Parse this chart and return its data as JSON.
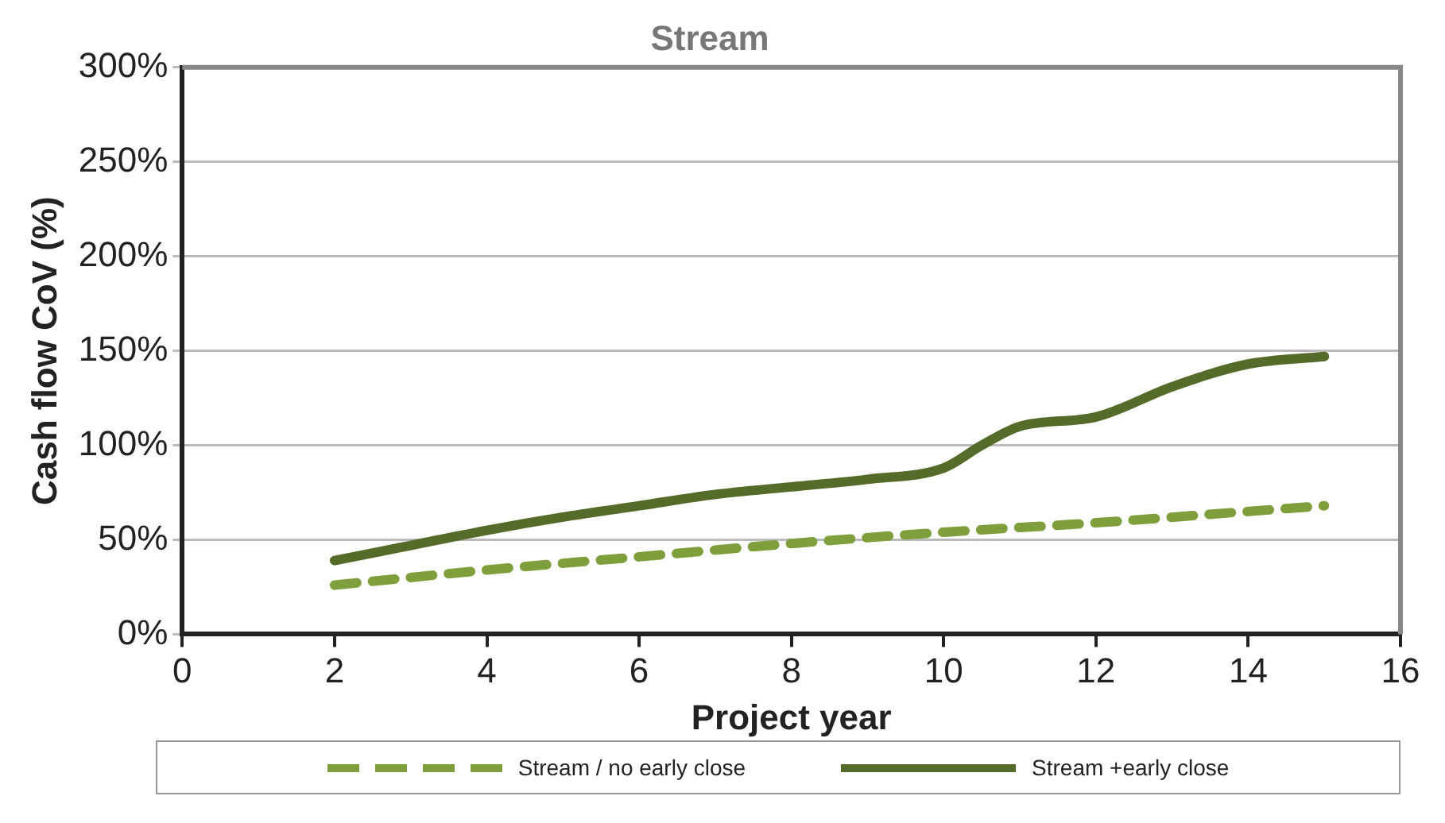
{
  "chart_data": {
    "type": "line",
    "title": "Stream",
    "xlabel": "Project year",
    "ylabel": "Cash flow CoV (%)",
    "xlim": [
      0,
      16
    ],
    "xticks": [
      0,
      2,
      4,
      6,
      8,
      10,
      12,
      14,
      16
    ],
    "ylim": [
      0,
      300
    ],
    "yticks": [
      {
        "value": 0,
        "label": "0%"
      },
      {
        "value": 50,
        "label": "50%"
      },
      {
        "value": 100,
        "label": "100%"
      },
      {
        "value": 150,
        "label": "150%"
      },
      {
        "value": 200,
        "label": "200%"
      },
      {
        "value": 250,
        "label": "250%"
      },
      {
        "value": 300,
        "label": "300%"
      }
    ],
    "grid": "y",
    "legend": "bottom",
    "marker": "none",
    "series": [
      {
        "name": "Stream / no early close",
        "color": "#7f9f3c",
        "line_style": "dashed",
        "x": [
          2,
          4,
          6,
          8,
          10,
          12,
          14,
          15
        ],
        "values": [
          26,
          34,
          41,
          48,
          54,
          59,
          65,
          68
        ]
      },
      {
        "name": "Stream +early close",
        "color": "#556b2a",
        "line_style": "solid",
        "x": [
          2,
          3,
          4,
          5,
          6,
          7,
          8,
          9,
          10,
          10.5,
          11,
          12,
          13,
          14,
          15
        ],
        "values": [
          39,
          47,
          55,
          62,
          68,
          74,
          78,
          82,
          88,
          100,
          110,
          115,
          131,
          143,
          147
        ]
      }
    ]
  }
}
